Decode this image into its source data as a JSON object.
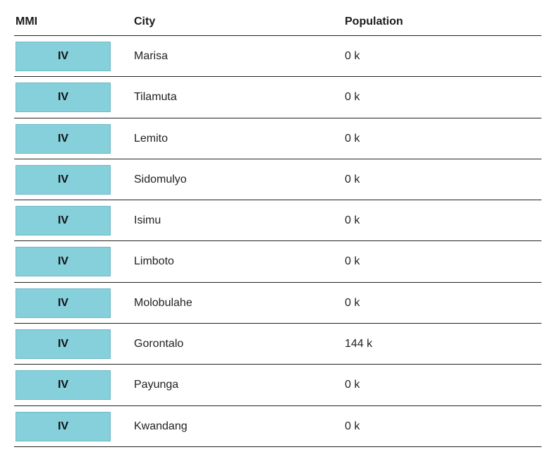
{
  "table": {
    "headers": {
      "mmi": "MMI",
      "city": "City",
      "population": "Population"
    },
    "badge_color": "#86d0dc",
    "rows": [
      {
        "mmi": "IV",
        "city": "Marisa",
        "population": "0 k"
      },
      {
        "mmi": "IV",
        "city": "Tilamuta",
        "population": "0 k"
      },
      {
        "mmi": "IV",
        "city": "Lemito",
        "population": "0 k"
      },
      {
        "mmi": "IV",
        "city": "Sidomulyo",
        "population": "0 k"
      },
      {
        "mmi": "IV",
        "city": "Isimu",
        "population": "0 k"
      },
      {
        "mmi": "IV",
        "city": "Limboto",
        "population": "0 k"
      },
      {
        "mmi": "IV",
        "city": "Molobulahe",
        "population": "0 k"
      },
      {
        "mmi": "IV",
        "city": "Gorontalo",
        "population": "144 k"
      },
      {
        "mmi": "IV",
        "city": "Payunga",
        "population": "0 k"
      },
      {
        "mmi": "IV",
        "city": "Kwandang",
        "population": "0 k"
      }
    ]
  }
}
